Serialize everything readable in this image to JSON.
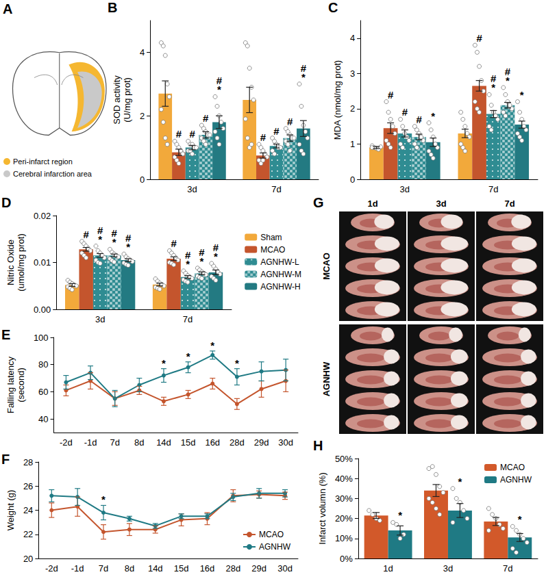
{
  "panel_a": {
    "panel": "A",
    "legend": [
      {
        "text": "Peri-infarct region",
        "color": "#f5b731"
      },
      {
        "text": "Cerebral infarction area",
        "color": "#c9c9c9"
      }
    ]
  },
  "panel_g": {
    "panel": "G",
    "columns": [
      "1d",
      "3d",
      "7d"
    ],
    "rows": [
      "MCAO",
      "AGNHW"
    ]
  },
  "chart_data": [
    {
      "panel": "B",
      "type": "bar",
      "y_label": "SOD activity\n(U/mg prot)",
      "categories": [
        "3d",
        "7d"
      ],
      "ylim": [
        0,
        5
      ],
      "yticks": [
        0,
        2,
        4
      ],
      "grid": false,
      "series": [
        {
          "name": "Sham",
          "color": "#f2a93b",
          "values": [
            2.7,
            2.5
          ],
          "errors": [
            0.4,
            0.4
          ],
          "points": [
            [
              4.3,
              4.2,
              3.9,
              3.0,
              2.6,
              2.2,
              1.8,
              1.3,
              1.1
            ],
            [
              4.3,
              4.2,
              3.5,
              2.9,
              2.5,
              1.9,
              1.3,
              1.0,
              1.1
            ]
          ],
          "annotations": [
            [],
            []
          ]
        },
        {
          "name": "MCAO",
          "color": "#c4552d",
          "values": [
            0.85,
            0.75
          ],
          "errors": [
            0.1,
            0.08
          ],
          "points": [
            [
              1.2,
              1.1,
              1.0,
              0.9,
              0.8,
              0.7,
              0.6,
              0.5,
              0.9,
              0.8
            ],
            [
              1.1,
              1.0,
              0.9,
              0.8,
              0.7,
              0.6,
              0.5,
              0.6
            ]
          ],
          "annotations": [
            [
              "#"
            ],
            [
              "#"
            ]
          ]
        },
        {
          "name": "AGNHW-L",
          "color": "#2f8c92",
          "values": [
            1.0,
            1.05
          ],
          "errors": [
            0.07,
            0.06
          ],
          "points": [
            [
              1.2,
              1.1,
              1.1,
              1.0,
              1.0,
              0.9,
              0.9,
              0.8
            ],
            [
              1.3,
              1.2,
              1.1,
              1.0,
              1.0,
              0.9,
              0.8
            ]
          ],
          "annotations": [
            [
              "#"
            ],
            [
              "#"
            ]
          ]
        },
        {
          "name": "AGNHW-M",
          "color": "#2f8c92",
          "values": [
            1.4,
            1.3
          ],
          "errors": [
            0.1,
            0.1
          ],
          "points": [
            [
              1.7,
              1.6,
              1.5,
              1.4,
              1.4,
              1.3,
              1.2,
              1.1
            ],
            [
              1.6,
              1.5,
              1.4,
              1.3,
              1.3,
              1.2,
              1.1,
              0.9
            ]
          ],
          "annotations": [
            [
              "#"
            ],
            [
              "#"
            ]
          ]
        },
        {
          "name": "AGNHW-H",
          "color": "#237a82",
          "values": [
            1.8,
            1.6
          ],
          "errors": [
            0.2,
            0.25
          ],
          "points": [
            [
              2.6,
              2.3,
              2.0,
              1.8,
              1.6,
              1.5,
              1.3,
              1.1
            ],
            [
              3.0,
              2.3,
              1.7,
              1.5,
              1.3,
              1.1,
              0.9,
              0.8
            ]
          ],
          "annotations": [
            [
              "#",
              "*"
            ],
            [
              "#",
              "*"
            ]
          ]
        }
      ]
    },
    {
      "panel": "C",
      "type": "bar",
      "y_label": "MDA (nmol/mg prot)",
      "categories": [
        "3d",
        "7d"
      ],
      "ylim": [
        0,
        4.5
      ],
      "yticks": [
        0,
        1,
        2,
        3,
        4
      ],
      "grid": false,
      "series": [
        {
          "name": "Sham",
          "color": "#f2a93b",
          "values": [
            0.9,
            1.3
          ],
          "errors": [
            0.03,
            0.12
          ],
          "points": [
            [
              0.95,
              0.9,
              0.88,
              0.85,
              0.92,
              0.9
            ],
            [
              1.9,
              1.7,
              1.5,
              1.3,
              1.2,
              1.0,
              0.9,
              0.8
            ]
          ],
          "annotations": [
            [],
            []
          ]
        },
        {
          "name": "MCAO",
          "color": "#c4552d",
          "values": [
            1.45,
            2.65
          ],
          "errors": [
            0.15,
            0.15
          ],
          "points": [
            [
              2.2,
              1.9,
              1.7,
              1.5,
              1.3,
              1.1,
              1.0,
              0.9
            ],
            [
              3.8,
              3.6,
              3.2,
              2.8,
              2.5,
              2.2,
              2.0,
              1.9
            ]
          ],
          "annotations": [
            [
              "#"
            ],
            [
              "#"
            ]
          ]
        },
        {
          "name": "AGNHW-L",
          "color": "#2f8c92",
          "values": [
            1.3,
            1.85
          ],
          "errors": [
            0.1,
            0.1
          ],
          "points": [
            [
              1.7,
              1.5,
              1.3,
              1.2,
              1.1,
              1.0,
              0.9
            ],
            [
              2.4,
              2.1,
              1.9,
              1.8,
              1.7,
              1.5,
              1.4
            ]
          ],
          "annotations": [
            [
              "#"
            ],
            [
              "#",
              "*"
            ]
          ]
        },
        {
          "name": "AGNHW-M",
          "color": "#2f8c92",
          "values": [
            1.2,
            2.1
          ],
          "errors": [
            0.08,
            0.08
          ],
          "points": [
            [
              1.5,
              1.4,
              1.3,
              1.2,
              1.1,
              1.0,
              0.9
            ],
            [
              2.6,
              2.4,
              2.2,
              2.1,
              2.0,
              1.9,
              1.8
            ]
          ],
          "annotations": [
            [
              "#"
            ],
            [
              "#",
              "*"
            ]
          ]
        },
        {
          "name": "AGNHW-H",
          "color": "#237a82",
          "values": [
            1.05,
            1.55
          ],
          "errors": [
            0.12,
            0.1
          ],
          "points": [
            [
              1.6,
              1.4,
              1.2,
              1.0,
              0.9,
              0.8,
              0.7,
              0.6
            ],
            [
              2.2,
              1.9,
              1.7,
              1.5,
              1.4,
              1.3,
              1.2,
              1.1
            ]
          ],
          "annotations": [
            [
              "*"
            ],
            [
              "*"
            ]
          ]
        }
      ]
    },
    {
      "panel": "D",
      "type": "bar",
      "y_label": "Nitric Oxide\n(umol/mg prot)",
      "categories": [
        "3d",
        "7d"
      ],
      "ylim": [
        0,
        0.02
      ],
      "yticks": [
        {
          "value": 0,
          "label": "0.00"
        },
        {
          "value": 0.01,
          "label": "0.01"
        },
        {
          "value": 0.02,
          "label": "0.02"
        }
      ],
      "grid": false,
      "legend": "right",
      "series": [
        {
          "name": "Sham",
          "color": "#f2a93b",
          "values": [
            0.0052,
            0.0053
          ],
          "errors": [
            0.0003,
            0.0003
          ],
          "points": [
            [
              0.0062,
              0.0058,
              0.0055,
              0.0052,
              0.005,
              0.0048,
              0.0045,
              0.0042
            ],
            [
              0.0065,
              0.006,
              0.0056,
              0.0053,
              0.005,
              0.0047,
              0.0045,
              0.0043
            ]
          ],
          "annotations": [
            [],
            []
          ]
        },
        {
          "name": "MCAO",
          "color": "#c4552d",
          "values": [
            0.0128,
            0.0108
          ],
          "errors": [
            0.0004,
            0.0004
          ],
          "points": [
            [
              0.0145,
              0.014,
              0.0135,
              0.013,
              0.0125,
              0.012,
              0.0115,
              0.011
            ],
            [
              0.0125,
              0.012,
              0.0115,
              0.011,
              0.0105,
              0.01,
              0.0098,
              0.0095
            ]
          ],
          "annotations": [
            [
              "#"
            ],
            [
              "#"
            ]
          ]
        },
        {
          "name": "AGNHW-L",
          "color": "#2f8c92",
          "values": [
            0.0115,
            0.0069
          ],
          "errors": [
            0.0004,
            0.0003
          ],
          "points": [
            [
              0.0135,
              0.0125,
              0.012,
              0.0115,
              0.011,
              0.0105,
              0.01,
              0.0098
            ],
            [
              0.0082,
              0.0077,
              0.0072,
              0.0069,
              0.0066,
              0.0063,
              0.006,
              0.0058
            ]
          ],
          "annotations": [
            [
              "#",
              "*"
            ],
            [
              "#",
              "*"
            ]
          ]
        },
        {
          "name": "AGNHW-M",
          "color": "#2f8c92",
          "values": [
            0.0115,
            0.0077
          ],
          "errors": [
            0.0003,
            0.0003
          ],
          "points": [
            [
              0.0128,
              0.0122,
              0.0118,
              0.0115,
              0.0112,
              0.0108,
              0.0104,
              0.0101
            ],
            [
              0.0088,
              0.0084,
              0.008,
              0.0077,
              0.0074,
              0.0071,
              0.0068,
              0.0066
            ]
          ],
          "annotations": [
            [
              "#",
              "*"
            ],
            [
              "#",
              "*"
            ]
          ]
        },
        {
          "name": "AGNHW-H",
          "color": "#237a82",
          "values": [
            0.0105,
            0.0079
          ],
          "errors": [
            0.0003,
            0.0005
          ],
          "points": [
            [
              0.0118,
              0.0112,
              0.0108,
              0.0105,
              0.0102,
              0.0099,
              0.0096,
              0.0094
            ],
            [
              0.0098,
              0.0092,
              0.0086,
              0.008,
              0.0075,
              0.007,
              0.0066,
              0.0062
            ]
          ],
          "annotations": [
            [
              "#",
              "*"
            ],
            [
              "#",
              "*"
            ]
          ]
        }
      ]
    },
    {
      "panel": "E",
      "type": "line",
      "y_label": "Falling latency\n(second)",
      "categories": [
        "-2d",
        "-1d",
        "7d",
        "8d",
        "14d",
        "15d",
        "16d",
        "28d",
        "29d",
        "30d"
      ],
      "ylim": [
        30,
        100
      ],
      "yticks": [
        40,
        60,
        80,
        100
      ],
      "grid": false,
      "series": [
        {
          "name": "MCAO",
          "color": "#c4552d",
          "marker": "circle",
          "line_style": "solid",
          "values": [
            61,
            68,
            55,
            61,
            53,
            58,
            66,
            51,
            62,
            68
          ],
          "errors": [
            4,
            6,
            5,
            3,
            3,
            3,
            4,
            4,
            6,
            8
          ],
          "annotations": [
            null,
            null,
            null,
            null,
            null,
            null,
            null,
            null,
            null,
            null
          ]
        },
        {
          "name": "AGNHW",
          "color": "#1f7a84",
          "marker": "circle",
          "line_style": "solid",
          "values": [
            67,
            74,
            55,
            65,
            72,
            78,
            87,
            71,
            75,
            76
          ],
          "errors": [
            5,
            5,
            6,
            5,
            5,
            4,
            3,
            6,
            7,
            8
          ],
          "annotations": [
            null,
            null,
            null,
            null,
            "*",
            "*",
            "*",
            "*",
            null,
            null
          ]
        }
      ]
    },
    {
      "panel": "F",
      "type": "line",
      "y_label": "Weight (g)",
      "categories": [
        "-2d",
        "-1d",
        "7d",
        "8d",
        "14d",
        "15d",
        "16d",
        "28d",
        "29d",
        "30d"
      ],
      "ylim": [
        20,
        28
      ],
      "yticks": [
        20,
        22,
        24,
        26,
        28
      ],
      "grid": false,
      "legend": "lower right",
      "series": [
        {
          "name": "MCAO",
          "color": "#c4552d",
          "marker": "circle",
          "line_style": "solid",
          "values": [
            24.0,
            24.3,
            22.2,
            22.4,
            22.4,
            23.2,
            23.3,
            25.2,
            25.3,
            25.2
          ],
          "errors": [
            0.6,
            0.8,
            0.6,
            0.5,
            0.3,
            0.5,
            0.5,
            0.5,
            0.3,
            0.3
          ],
          "annotations": [
            null,
            null,
            null,
            null,
            null,
            null,
            null,
            null,
            null,
            null
          ]
        },
        {
          "name": "AGNHW",
          "color": "#1f7a84",
          "marker": "circle",
          "line_style": "solid",
          "values": [
            25.2,
            25.1,
            23.8,
            23.3,
            22.7,
            23.5,
            23.5,
            25.1,
            25.4,
            25.4
          ],
          "errors": [
            0.5,
            0.7,
            0.6,
            0.2,
            0.2,
            0.2,
            0.2,
            0.3,
            0.4,
            0.3
          ],
          "annotations": [
            null,
            null,
            "*",
            null,
            null,
            null,
            null,
            null,
            null,
            null
          ]
        }
      ]
    },
    {
      "panel": "H",
      "type": "bar",
      "y_label": "Infarct volumn (%)",
      "categories": [
        "1d",
        "3d",
        "7d"
      ],
      "ylim": [
        0,
        50
      ],
      "yticks": [
        {
          "value": 0,
          "label": "0%"
        },
        {
          "value": 10,
          "label": "10%"
        },
        {
          "value": 20,
          "label": "20%"
        },
        {
          "value": 30,
          "label": "30%"
        },
        {
          "value": 40,
          "label": "40%"
        },
        {
          "value": 50,
          "label": "50%"
        }
      ],
      "grid": false,
      "legend": "upper right",
      "series": [
        {
          "name": "MCAO",
          "color": "#d2592a",
          "values": [
            21.5,
            34,
            18.5
          ],
          "errors": [
            1.5,
            3,
            2
          ],
          "points": [
            [
              24,
              22,
              20,
              19
            ],
            [
              45,
              46,
              42,
              36,
              33,
              30,
              28,
              25,
              22
            ],
            [
              25,
              22,
              20,
              17,
              15,
              14
            ]
          ],
          "annotations": [
            [],
            [],
            []
          ]
        },
        {
          "name": "AGNHW",
          "color": "#1f7a84",
          "values": [
            14,
            24,
            10.5
          ],
          "errors": [
            2.3,
            3.5,
            2
          ],
          "points": [
            [
              18,
              17,
              10,
              12
            ],
            [
              35,
              30,
              28,
              24,
              20,
              18
            ],
            [
              16,
              14,
              12,
              10,
              8,
              5,
              3
            ]
          ],
          "annotations": [
            [
              "*"
            ],
            [
              "*"
            ],
            [
              "*"
            ]
          ]
        }
      ]
    }
  ]
}
